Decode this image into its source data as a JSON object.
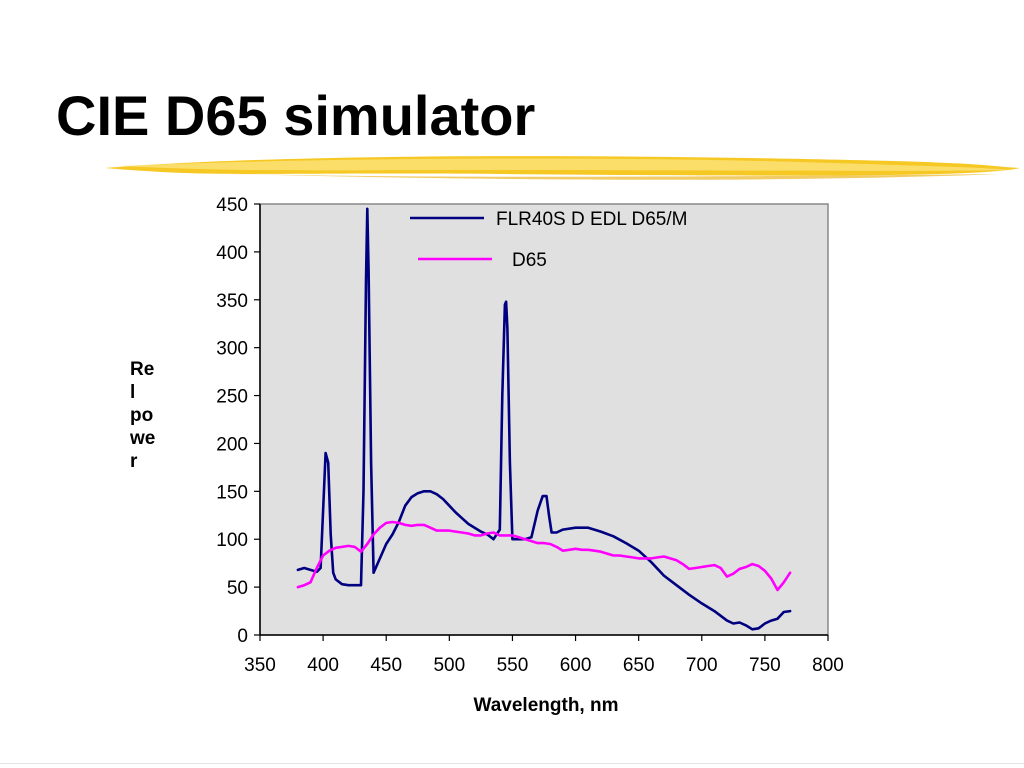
{
  "slide": {
    "title": "CIE D65 simulator",
    "accent_color": "#f5c518"
  },
  "chart_data": {
    "type": "line",
    "title": "",
    "xlabel": "Wavelength, nm",
    "ylabel": "Rel power",
    "xlim": [
      350,
      800
    ],
    "ylim": [
      0,
      450
    ],
    "xticks": [
      350,
      400,
      450,
      500,
      550,
      600,
      650,
      700,
      750,
      800
    ],
    "yticks": [
      0,
      50,
      100,
      150,
      200,
      250,
      300,
      350,
      400,
      450
    ],
    "grid": false,
    "plot_background": "#e0e0e0",
    "legend_position": "top-right",
    "series": [
      {
        "name": "FLR40S D EDL D65/M",
        "color": "#000080",
        "x": [
          380,
          385,
          390,
          395,
          398,
          400,
          402,
          404,
          406,
          408,
          410,
          415,
          420,
          425,
          430,
          432,
          434,
          435,
          436,
          438,
          440,
          445,
          450,
          455,
          460,
          465,
          470,
          475,
          480,
          485,
          490,
          495,
          500,
          505,
          510,
          515,
          520,
          525,
          530,
          535,
          540,
          542,
          544,
          545,
          546,
          548,
          550,
          555,
          560,
          565,
          570,
          574,
          577,
          579,
          581,
          585,
          590,
          600,
          610,
          620,
          630,
          640,
          650,
          660,
          670,
          680,
          690,
          700,
          710,
          720,
          725,
          730,
          735,
          740,
          745,
          750,
          755,
          760,
          765,
          770
        ],
        "y": [
          68,
          70,
          68,
          66,
          70,
          130,
          190,
          180,
          105,
          65,
          58,
          53,
          52,
          52,
          52,
          150,
          370,
          445,
          380,
          180,
          65,
          80,
          95,
          105,
          118,
          135,
          144,
          148,
          150,
          150,
          147,
          142,
          135,
          128,
          122,
          116,
          112,
          108,
          105,
          100,
          110,
          250,
          345,
          348,
          320,
          180,
          100,
          100,
          100,
          102,
          130,
          145,
          145,
          125,
          107,
          107,
          110,
          112,
          112,
          108,
          103,
          96,
          88,
          76,
          62,
          52,
          42,
          33,
          25,
          15,
          12,
          13,
          10,
          6,
          7,
          12,
          15,
          17,
          24,
          25
        ]
      },
      {
        "name": "D65",
        "color": "#ff00ff",
        "x": [
          380,
          385,
          390,
          395,
          400,
          405,
          410,
          415,
          420,
          425,
          430,
          435,
          440,
          445,
          450,
          455,
          460,
          465,
          470,
          475,
          480,
          485,
          490,
          495,
          500,
          505,
          510,
          515,
          520,
          525,
          530,
          535,
          540,
          545,
          550,
          555,
          560,
          565,
          570,
          575,
          580,
          585,
          590,
          595,
          600,
          605,
          610,
          615,
          620,
          625,
          630,
          635,
          640,
          645,
          650,
          655,
          660,
          665,
          670,
          675,
          680,
          685,
          690,
          695,
          700,
          705,
          710,
          715,
          720,
          725,
          730,
          735,
          740,
          745,
          750,
          755,
          760,
          765,
          770
        ],
        "y": [
          50,
          52,
          55,
          70,
          83,
          88,
          91,
          92,
          93,
          92,
          87,
          95,
          105,
          112,
          117,
          118,
          117,
          115,
          114,
          115,
          115,
          112,
          109,
          109,
          109,
          108,
          107,
          106,
          104,
          104,
          106,
          107,
          104,
          104,
          104,
          102,
          100,
          98,
          96,
          96,
          95,
          92,
          88,
          89,
          90,
          89,
          89,
          88,
          87,
          85,
          83,
          83,
          82,
          81,
          80,
          80,
          80,
          81,
          82,
          80,
          78,
          74,
          69,
          70,
          71,
          72,
          73,
          70,
          61,
          64,
          69,
          71,
          74,
          72,
          67,
          59,
          47,
          55,
          65
        ]
      }
    ]
  }
}
